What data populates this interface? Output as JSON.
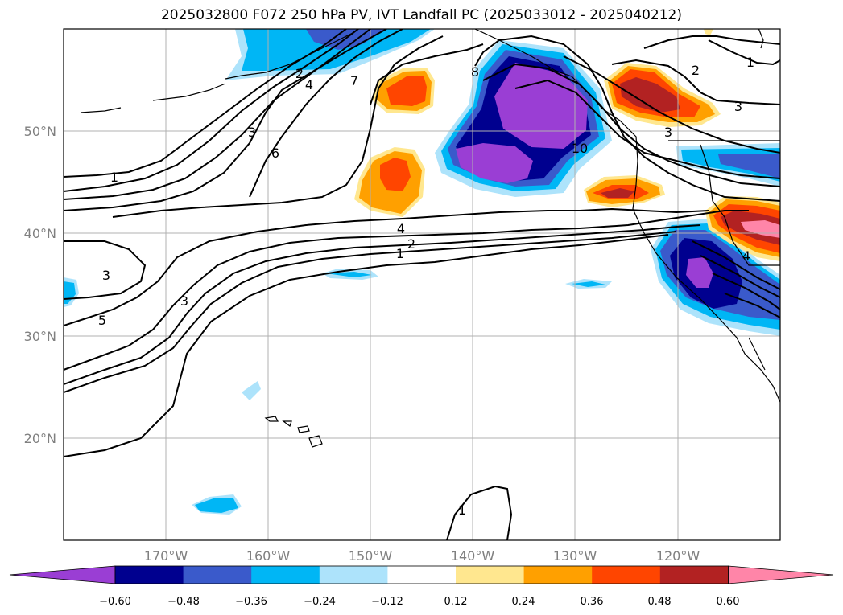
{
  "title": "2025032800 F072 250 hPa PV, IVT Landfall PC (2025033012 - 2025040212)",
  "map": {
    "projection": "PlateCarree",
    "lon_range": [
      -180,
      -110
    ],
    "lat_range": [
      10,
      60
    ],
    "lat_labels": [
      "50°N",
      "40°N",
      "30°N",
      "20°N"
    ],
    "lon_labels": [
      "170°W",
      "160°W",
      "150°W",
      "140°W",
      "130°W",
      "120°W"
    ],
    "gridlines": true
  },
  "contour_labels": [
    "1",
    "3",
    "3",
    "5",
    "3",
    "2",
    "4",
    "7",
    "6",
    "4",
    "2",
    "1",
    "8",
    "10",
    "2",
    "3",
    "1",
    "3",
    "4",
    "1"
  ],
  "colorbar": {
    "ticks": [
      "−0.60",
      "−0.48",
      "−0.36",
      "−0.24",
      "−0.12",
      "0.12",
      "0.24",
      "0.36",
      "0.48",
      "0.60"
    ],
    "colors": [
      "#9a3ed4",
      "#00008f",
      "#3a5acb",
      "#00b6f5",
      "#ade3fb",
      "#ffffff",
      "#ffe78f",
      "#ffa000",
      "#ff4500",
      "#b22222",
      "#ff85a8"
    ]
  }
}
